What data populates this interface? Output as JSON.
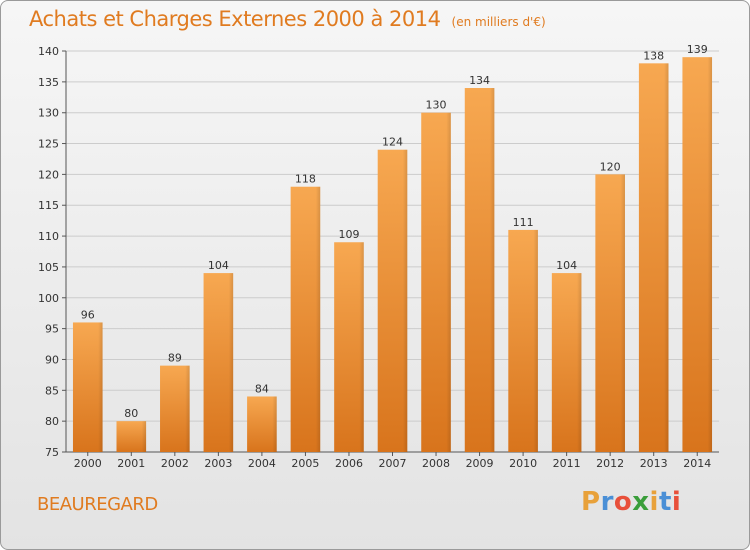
{
  "title": "Achats et Charges Externes 2000 à 2014",
  "subtitle": "(en milliers d'€)",
  "location": "BEAUREGARD",
  "logo": {
    "letters": [
      "P",
      "r",
      "o",
      "x",
      "i",
      "t",
      "i"
    ],
    "colors": [
      "#e8a13a",
      "#4a8fd6",
      "#e8503a",
      "#3a9e3a",
      "#e8a13a",
      "#4a8fd6",
      "#e8503a"
    ]
  },
  "colors": {
    "bar": "#e8842c",
    "bar_light": "#f6a44e",
    "title": "#e07b20",
    "grid": "#cccccc"
  },
  "chart_data": {
    "type": "bar",
    "title": "Achats et Charges Externes 2000 à 2014",
    "subtitle": "(en milliers d'€)",
    "categories": [
      "2000",
      "2001",
      "2002",
      "2003",
      "2004",
      "2005",
      "2006",
      "2007",
      "2008",
      "2009",
      "2010",
      "2011",
      "2012",
      "2013",
      "2014"
    ],
    "values": [
      96,
      80,
      89,
      104,
      84,
      118,
      109,
      124,
      130,
      134,
      111,
      104,
      120,
      138,
      139
    ],
    "ylim": [
      75,
      140
    ],
    "yticks": [
      75,
      80,
      85,
      90,
      95,
      100,
      105,
      110,
      115,
      120,
      125,
      130,
      135,
      140
    ],
    "grid": true,
    "xlabel": "",
    "ylabel": ""
  }
}
